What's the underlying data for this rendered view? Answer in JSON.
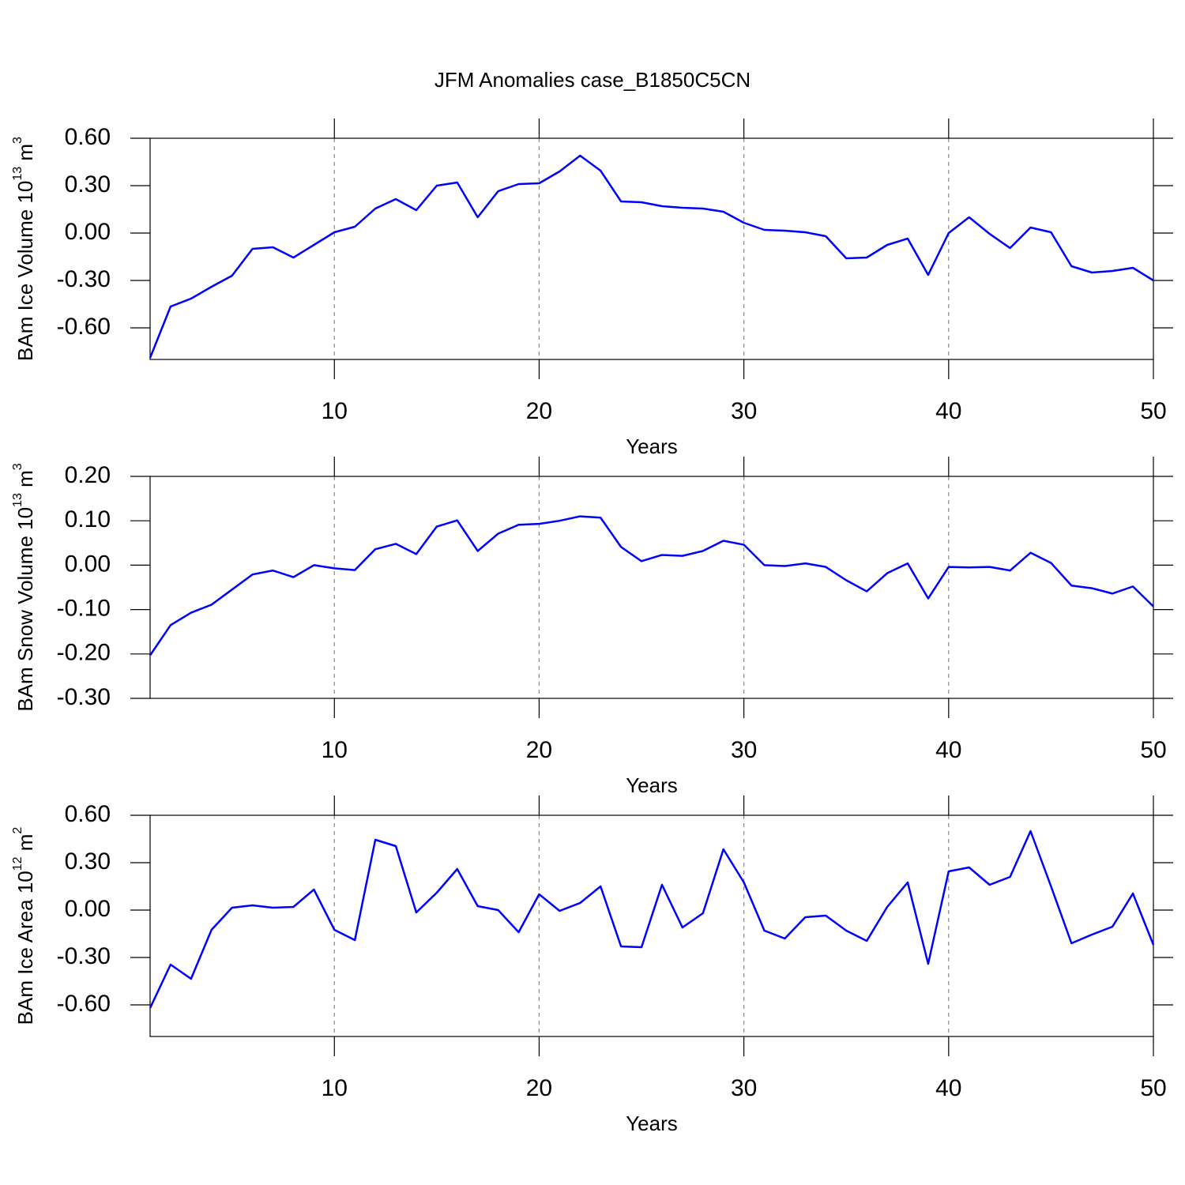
{
  "title": "JFM Anomalies case_B1850C5CN",
  "chart_data": [
    {
      "type": "line",
      "color": "#0000ff",
      "grid": "x",
      "xlabel": "Years",
      "ylabel": [
        "BAm Ice Volume 10",
        "13",
        " m",
        "3"
      ],
      "x": [
        1,
        2,
        3,
        4,
        5,
        6,
        7,
        8,
        9,
        10,
        11,
        12,
        13,
        14,
        15,
        16,
        17,
        18,
        19,
        20,
        21,
        22,
        23,
        24,
        25,
        26,
        27,
        28,
        29,
        30,
        31,
        32,
        33,
        34,
        35,
        36,
        37,
        38,
        39,
        40,
        41,
        42,
        43,
        44,
        45,
        46,
        47,
        48,
        49,
        50
      ],
      "values": [
        -0.79,
        -0.465,
        -0.415,
        -0.34,
        -0.27,
        -0.1,
        -0.09,
        -0.155,
        -0.075,
        0.005,
        0.04,
        0.155,
        0.215,
        0.145,
        0.3,
        0.32,
        0.1,
        0.265,
        0.31,
        0.315,
        0.39,
        0.49,
        0.395,
        0.2,
        0.195,
        0.17,
        0.16,
        0.155,
        0.135,
        0.065,
        0.02,
        0.015,
        0.005,
        -0.02,
        -0.16,
        -0.155,
        -0.075,
        -0.035,
        -0.265,
        0.0,
        0.1,
        -0.005,
        -0.095,
        0.035,
        0.005,
        -0.21,
        -0.25,
        -0.24,
        -0.22,
        -0.3
      ],
      "xlim": [
        1,
        50
      ],
      "xticks": [
        10,
        20,
        30,
        40,
        50
      ],
      "ylim": [
        -0.8,
        0.6
      ],
      "yticks": [
        {
          "value": 0.6,
          "label": "0.60"
        },
        {
          "value": 0.3,
          "label": "0.30"
        },
        {
          "value": 0,
          "label": "0.00"
        },
        {
          "value": -0.3,
          "label": "-0.30"
        },
        {
          "value": -0.6,
          "label": "-0.60"
        }
      ]
    },
    {
      "type": "line",
      "color": "#0000ff",
      "grid": "x",
      "xlabel": "Years",
      "ylabel": [
        "BAm Snow Volume 10",
        "13",
        " m",
        "3"
      ],
      "x": [
        1,
        2,
        3,
        4,
        5,
        6,
        7,
        8,
        9,
        10,
        11,
        12,
        13,
        14,
        15,
        16,
        17,
        18,
        19,
        20,
        21,
        22,
        23,
        24,
        25,
        26,
        27,
        28,
        29,
        30,
        31,
        32,
        33,
        34,
        35,
        36,
        37,
        38,
        39,
        40,
        41,
        42,
        43,
        44,
        45,
        46,
        47,
        48,
        49,
        50
      ],
      "values": [
        -0.203,
        -0.135,
        -0.107,
        -0.089,
        -0.055,
        -0.021,
        -0.012,
        -0.027,
        0.0,
        -0.007,
        -0.011,
        0.036,
        0.048,
        0.025,
        0.087,
        0.101,
        0.032,
        0.071,
        0.091,
        0.093,
        0.1,
        0.11,
        0.107,
        0.041,
        0.009,
        0.023,
        0.021,
        0.032,
        0.055,
        0.046,
        0.0,
        -0.002,
        0.004,
        -0.004,
        -0.034,
        -0.059,
        -0.018,
        0.004,
        -0.075,
        -0.004,
        -0.005,
        -0.004,
        -0.012,
        0.028,
        0.005,
        -0.046,
        -0.052,
        -0.064,
        -0.048,
        -0.093
      ],
      "xlim": [
        1,
        50
      ],
      "xticks": [
        10,
        20,
        30,
        40,
        50
      ],
      "ylim": [
        -0.3,
        0.2
      ],
      "yticks": [
        {
          "value": 0.2,
          "label": "0.20"
        },
        {
          "value": 0.1,
          "label": "0.10"
        },
        {
          "value": 0,
          "label": "0.00"
        },
        {
          "value": -0.1,
          "label": "-0.10"
        },
        {
          "value": -0.2,
          "label": "-0.20"
        },
        {
          "value": -0.3,
          "label": "-0.30"
        }
      ]
    },
    {
      "type": "line",
      "color": "#0000ff",
      "grid": "x",
      "xlabel": "Years",
      "ylabel": [
        "BAm Ice Area 10",
        "12",
        " m",
        "2"
      ],
      "x": [
        1,
        2,
        3,
        4,
        5,
        6,
        7,
        8,
        9,
        10,
        11,
        12,
        13,
        14,
        15,
        16,
        17,
        18,
        19,
        20,
        21,
        22,
        23,
        24,
        25,
        26,
        27,
        28,
        29,
        30,
        31,
        32,
        33,
        34,
        35,
        36,
        37,
        38,
        39,
        40,
        41,
        42,
        43,
        44,
        45,
        46,
        47,
        48,
        49,
        50
      ],
      "values": [
        -0.62,
        -0.345,
        -0.435,
        -0.125,
        0.015,
        0.03,
        0.015,
        0.02,
        0.13,
        -0.125,
        -0.19,
        0.445,
        0.405,
        -0.015,
        0.11,
        0.26,
        0.025,
        0.0,
        -0.14,
        0.1,
        -0.005,
        0.045,
        0.15,
        -0.23,
        -0.235,
        0.16,
        -0.11,
        -0.02,
        0.385,
        0.175,
        -0.13,
        -0.18,
        -0.045,
        -0.035,
        -0.13,
        -0.195,
        0.02,
        0.175,
        -0.34,
        0.245,
        0.27,
        0.16,
        0.21,
        0.5,
        0.15,
        -0.21,
        -0.155,
        -0.105,
        0.105,
        -0.22
      ],
      "xlim": [
        1,
        50
      ],
      "xticks": [
        10,
        20,
        30,
        40,
        50
      ],
      "ylim": [
        -0.8,
        0.6
      ],
      "yticks": [
        {
          "value": 0.6,
          "label": "0.60"
        },
        {
          "value": 0.3,
          "label": "0.30"
        },
        {
          "value": 0,
          "label": "0.00"
        },
        {
          "value": -0.3,
          "label": "-0.30"
        },
        {
          "value": -0.6,
          "label": "-0.60"
        }
      ]
    }
  ]
}
